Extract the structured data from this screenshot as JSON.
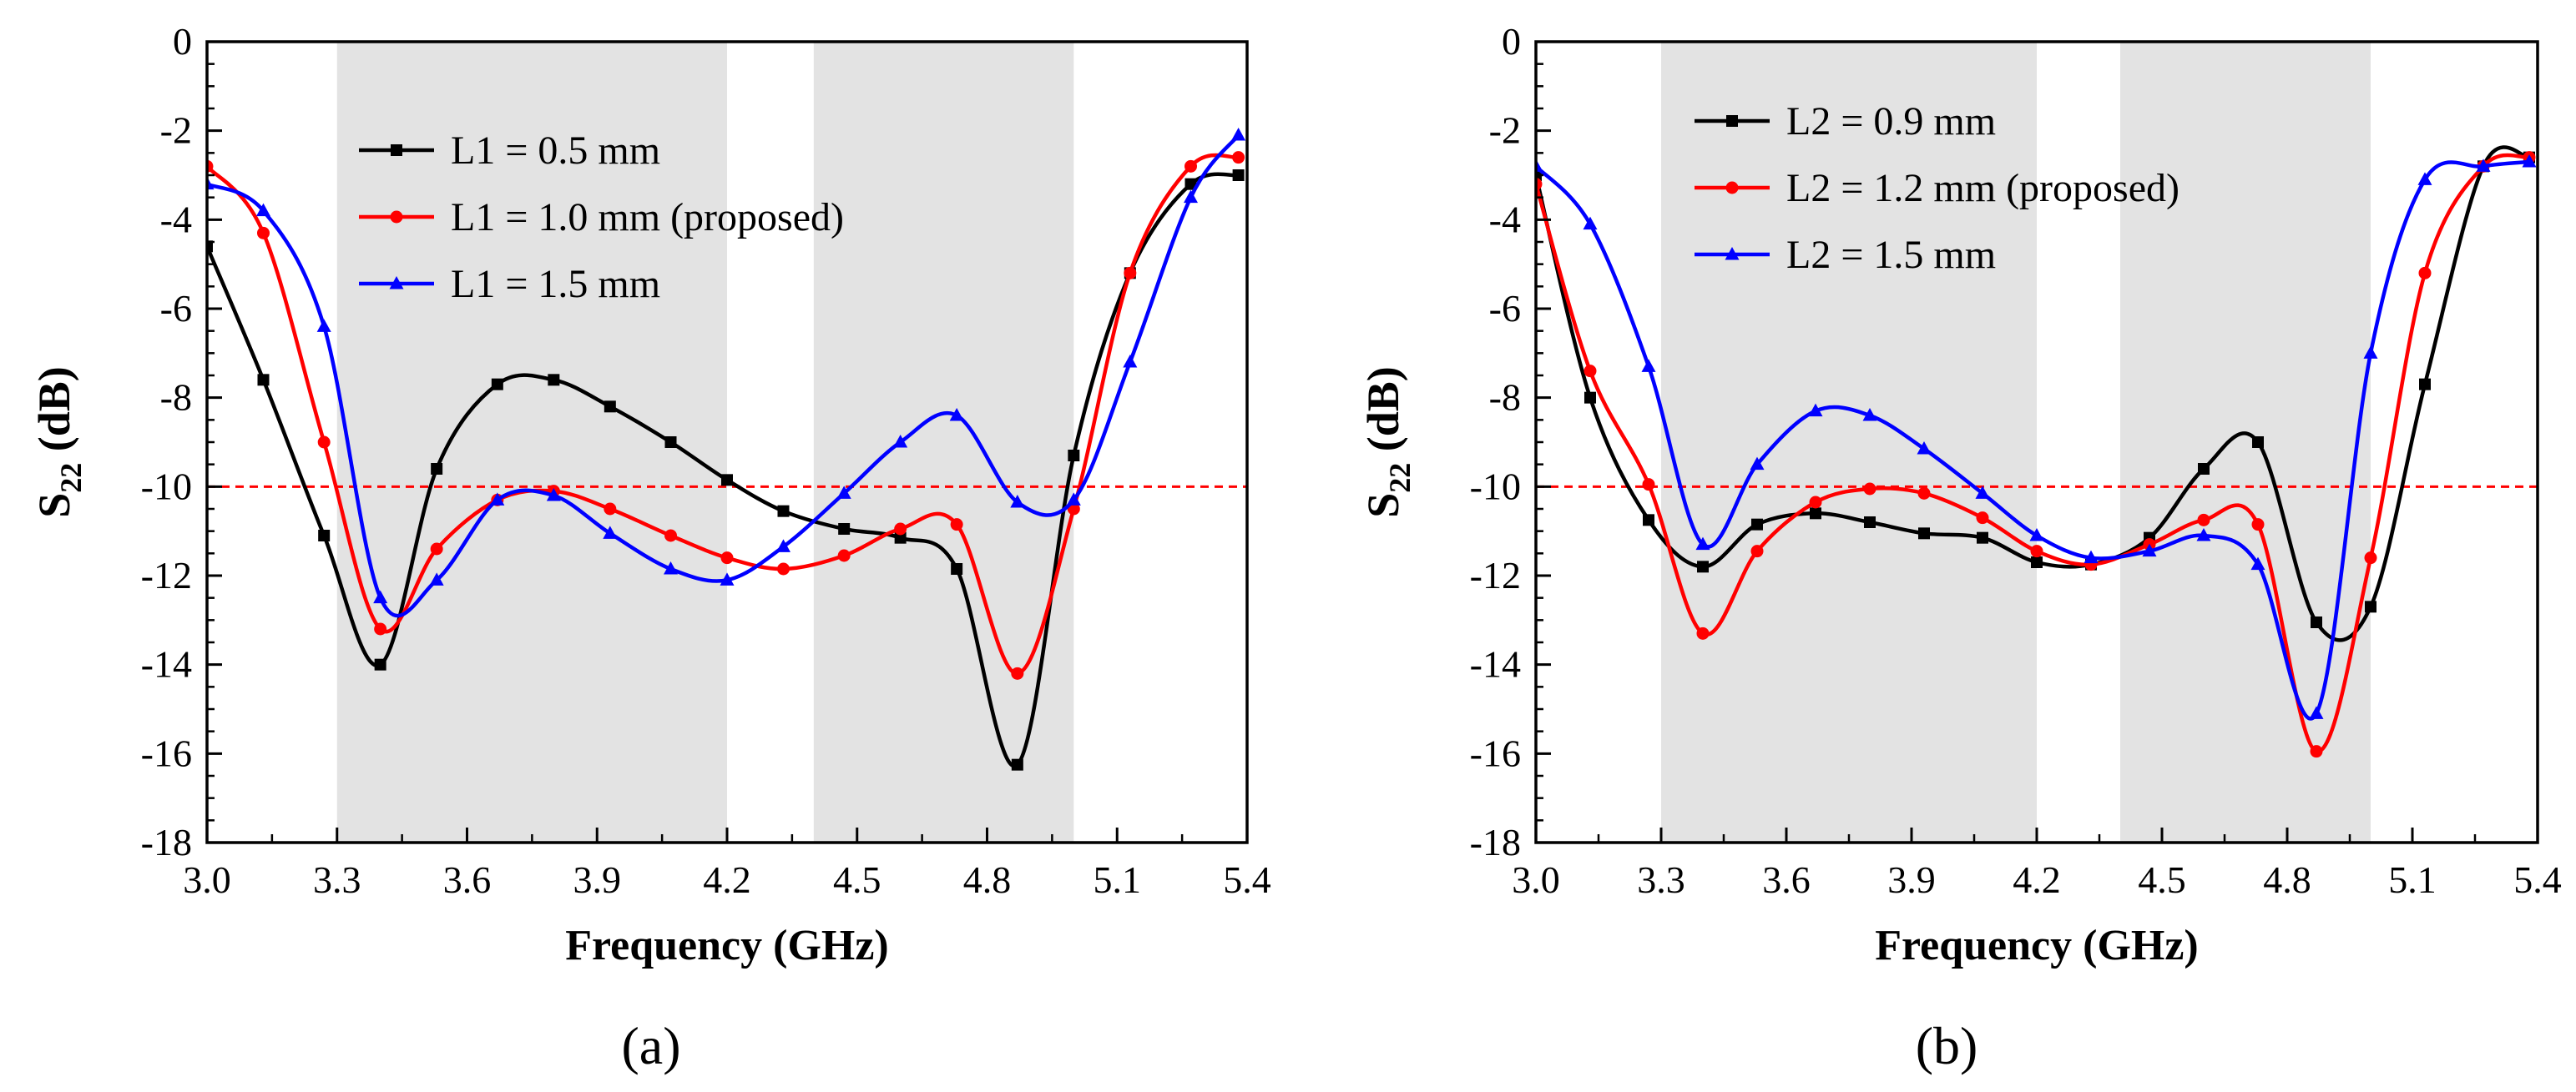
{
  "chart_data": [
    {
      "type": "line",
      "panel_label": "(a)",
      "xlabel": "Frequency (GHz)",
      "ylabel_main": "S",
      "ylabel_sub": "22",
      "ylabel_unit": " (dB)",
      "xlim": [
        3.0,
        5.4
      ],
      "ylim": [
        -18,
        0
      ],
      "xticks": [
        "3.0",
        "3.3",
        "3.6",
        "3.9",
        "4.2",
        "4.5",
        "4.8",
        "5.1",
        "5.4"
      ],
      "yticks": [
        "0",
        "-2",
        "-4",
        "-6",
        "-8",
        "-10",
        "-12",
        "-14",
        "-16",
        "-18"
      ],
      "shaded_bands": [
        [
          3.3,
          4.2
        ],
        [
          4.4,
          5.0
        ]
      ],
      "reference_line": -10,
      "legend_position": "upper-center",
      "series": [
        {
          "name": "L1 = 0.5 mm",
          "color": "#000000",
          "marker": "square",
          "x": [
            3.0,
            3.13,
            3.27,
            3.4,
            3.53,
            3.67,
            3.8,
            3.93,
            4.07,
            4.2,
            4.33,
            4.47,
            4.6,
            4.73,
            4.87,
            5.0,
            5.13,
            5.27,
            5.38
          ],
          "y": [
            -4.6,
            -7.6,
            -11.1,
            -14.0,
            -9.6,
            -7.7,
            -7.6,
            -8.2,
            -9.0,
            -9.85,
            -10.55,
            -10.95,
            -11.15,
            -11.85,
            -16.25,
            -9.3,
            -5.2,
            -3.2,
            -3.0
          ]
        },
        {
          "name": "L1 = 1.0 mm (proposed)",
          "color": "#ff0000",
          "marker": "circle",
          "x": [
            3.0,
            3.13,
            3.27,
            3.4,
            3.53,
            3.67,
            3.8,
            3.93,
            4.07,
            4.2,
            4.33,
            4.47,
            4.6,
            4.73,
            4.87,
            5.0,
            5.13,
            5.27,
            5.38
          ],
          "y": [
            -2.8,
            -4.3,
            -9.0,
            -13.2,
            -11.4,
            -10.3,
            -10.1,
            -10.5,
            -11.1,
            -11.6,
            -11.85,
            -11.55,
            -10.95,
            -10.85,
            -14.2,
            -10.5,
            -5.2,
            -2.8,
            -2.6
          ]
        },
        {
          "name": "L1 = 1.5 mm",
          "color": "#0000ff",
          "marker": "triangle",
          "x": [
            3.0,
            3.13,
            3.27,
            3.4,
            3.53,
            3.67,
            3.8,
            3.93,
            4.07,
            4.2,
            4.33,
            4.47,
            4.6,
            4.73,
            4.87,
            5.0,
            5.13,
            5.27,
            5.38
          ],
          "y": [
            -3.2,
            -3.8,
            -6.4,
            -12.5,
            -12.1,
            -10.3,
            -10.2,
            -11.05,
            -11.85,
            -12.1,
            -11.35,
            -10.15,
            -9.0,
            -8.4,
            -10.35,
            -10.3,
            -7.2,
            -3.5,
            -2.1
          ]
        }
      ]
    },
    {
      "type": "line",
      "panel_label": "(b)",
      "xlabel": "Frequency (GHz)",
      "ylabel_main": "S",
      "ylabel_sub": "22",
      "ylabel_unit": " (dB)",
      "xlim": [
        3.0,
        5.4
      ],
      "ylim": [
        -18,
        0
      ],
      "xticks": [
        "3.0",
        "3.3",
        "3.6",
        "3.9",
        "4.2",
        "4.5",
        "4.8",
        "5.1",
        "5.4"
      ],
      "yticks": [
        "0",
        "-2",
        "-4",
        "-6",
        "-8",
        "-10",
        "-12",
        "-14",
        "-16",
        "-18"
      ],
      "shaded_bands": [
        [
          3.3,
          4.2
        ],
        [
          4.4,
          5.0
        ]
      ],
      "reference_line": -10,
      "legend_position": "upper-left",
      "series": [
        {
          "name": "L2 = 0.9 mm",
          "color": "#000000",
          "marker": "square",
          "x": [
            3.0,
            3.13,
            3.27,
            3.4,
            3.53,
            3.67,
            3.8,
            3.93,
            4.07,
            4.2,
            4.33,
            4.47,
            4.6,
            4.73,
            4.87,
            5.0,
            5.13,
            5.27,
            5.38
          ],
          "y": [
            -3.0,
            -8.0,
            -10.75,
            -11.8,
            -10.85,
            -10.6,
            -10.8,
            -11.05,
            -11.15,
            -11.7,
            -11.75,
            -11.15,
            -9.6,
            -9.0,
            -13.05,
            -12.7,
            -7.7,
            -2.8,
            -2.6
          ]
        },
        {
          "name": "L2 = 1.2 mm (proposed)",
          "color": "#ff0000",
          "marker": "circle",
          "x": [
            3.0,
            3.13,
            3.27,
            3.4,
            3.53,
            3.67,
            3.8,
            3.93,
            4.07,
            4.2,
            4.33,
            4.47,
            4.6,
            4.73,
            4.87,
            5.0,
            5.13,
            5.27,
            5.38
          ],
          "y": [
            -3.2,
            -7.4,
            -9.95,
            -13.3,
            -11.45,
            -10.35,
            -10.05,
            -10.15,
            -10.7,
            -11.45,
            -11.75,
            -11.3,
            -10.75,
            -10.85,
            -15.95,
            -11.6,
            -5.2,
            -2.8,
            -2.6
          ]
        },
        {
          "name": "L2 = 1.5 mm",
          "color": "#0000ff",
          "marker": "triangle",
          "x": [
            3.0,
            3.13,
            3.27,
            3.4,
            3.53,
            3.67,
            3.8,
            3.93,
            4.07,
            4.2,
            4.33,
            4.47,
            4.6,
            4.73,
            4.87,
            5.0,
            5.13,
            5.27,
            5.38
          ],
          "y": [
            -2.8,
            -4.1,
            -7.3,
            -11.3,
            -9.5,
            -8.3,
            -8.4,
            -9.15,
            -10.15,
            -11.1,
            -11.6,
            -11.45,
            -11.1,
            -11.75,
            -15.1,
            -7.0,
            -3.1,
            -2.8,
            -2.7
          ]
        }
      ]
    }
  ]
}
